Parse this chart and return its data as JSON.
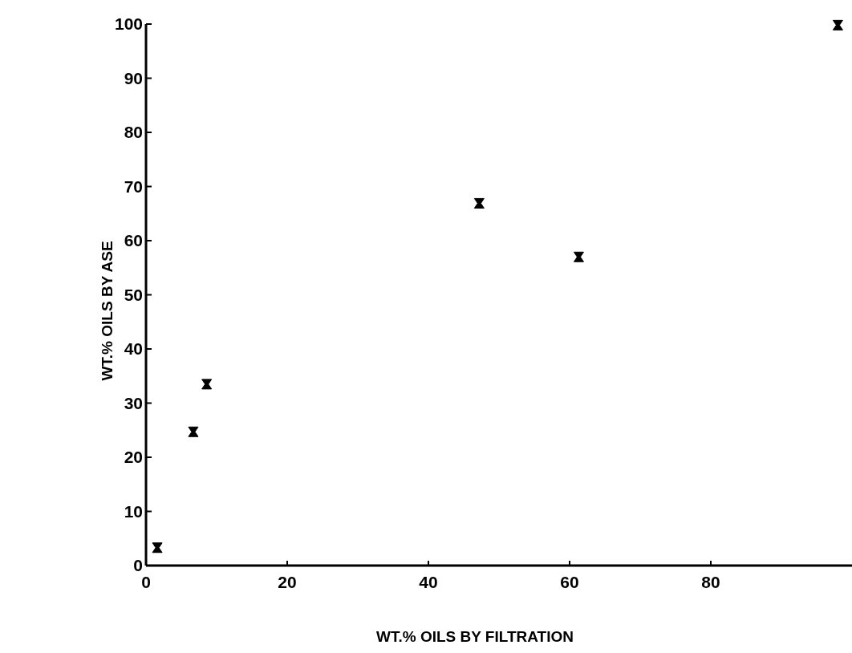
{
  "chart_data": {
    "type": "scatter",
    "xlabel": "WT.% OILS BY FILTRATION",
    "ylabel": "WT.% OILS BY ASE",
    "x": [
      1.6,
      6.7,
      8.6,
      47.2,
      61.3,
      98.0
    ],
    "series": [
      {
        "color": "#000000",
        "values": [
          3.3,
          24.7,
          33.5,
          66.9,
          57.0,
          99.8
        ]
      }
    ],
    "xlim": [
      0,
      100
    ],
    "xticks": [
      0,
      20,
      40,
      60,
      80
    ],
    "ylim": [
      0,
      100
    ],
    "yticks": [
      0,
      10,
      20,
      30,
      40,
      50,
      60,
      70,
      80,
      90,
      100
    ],
    "marker": "cross"
  }
}
